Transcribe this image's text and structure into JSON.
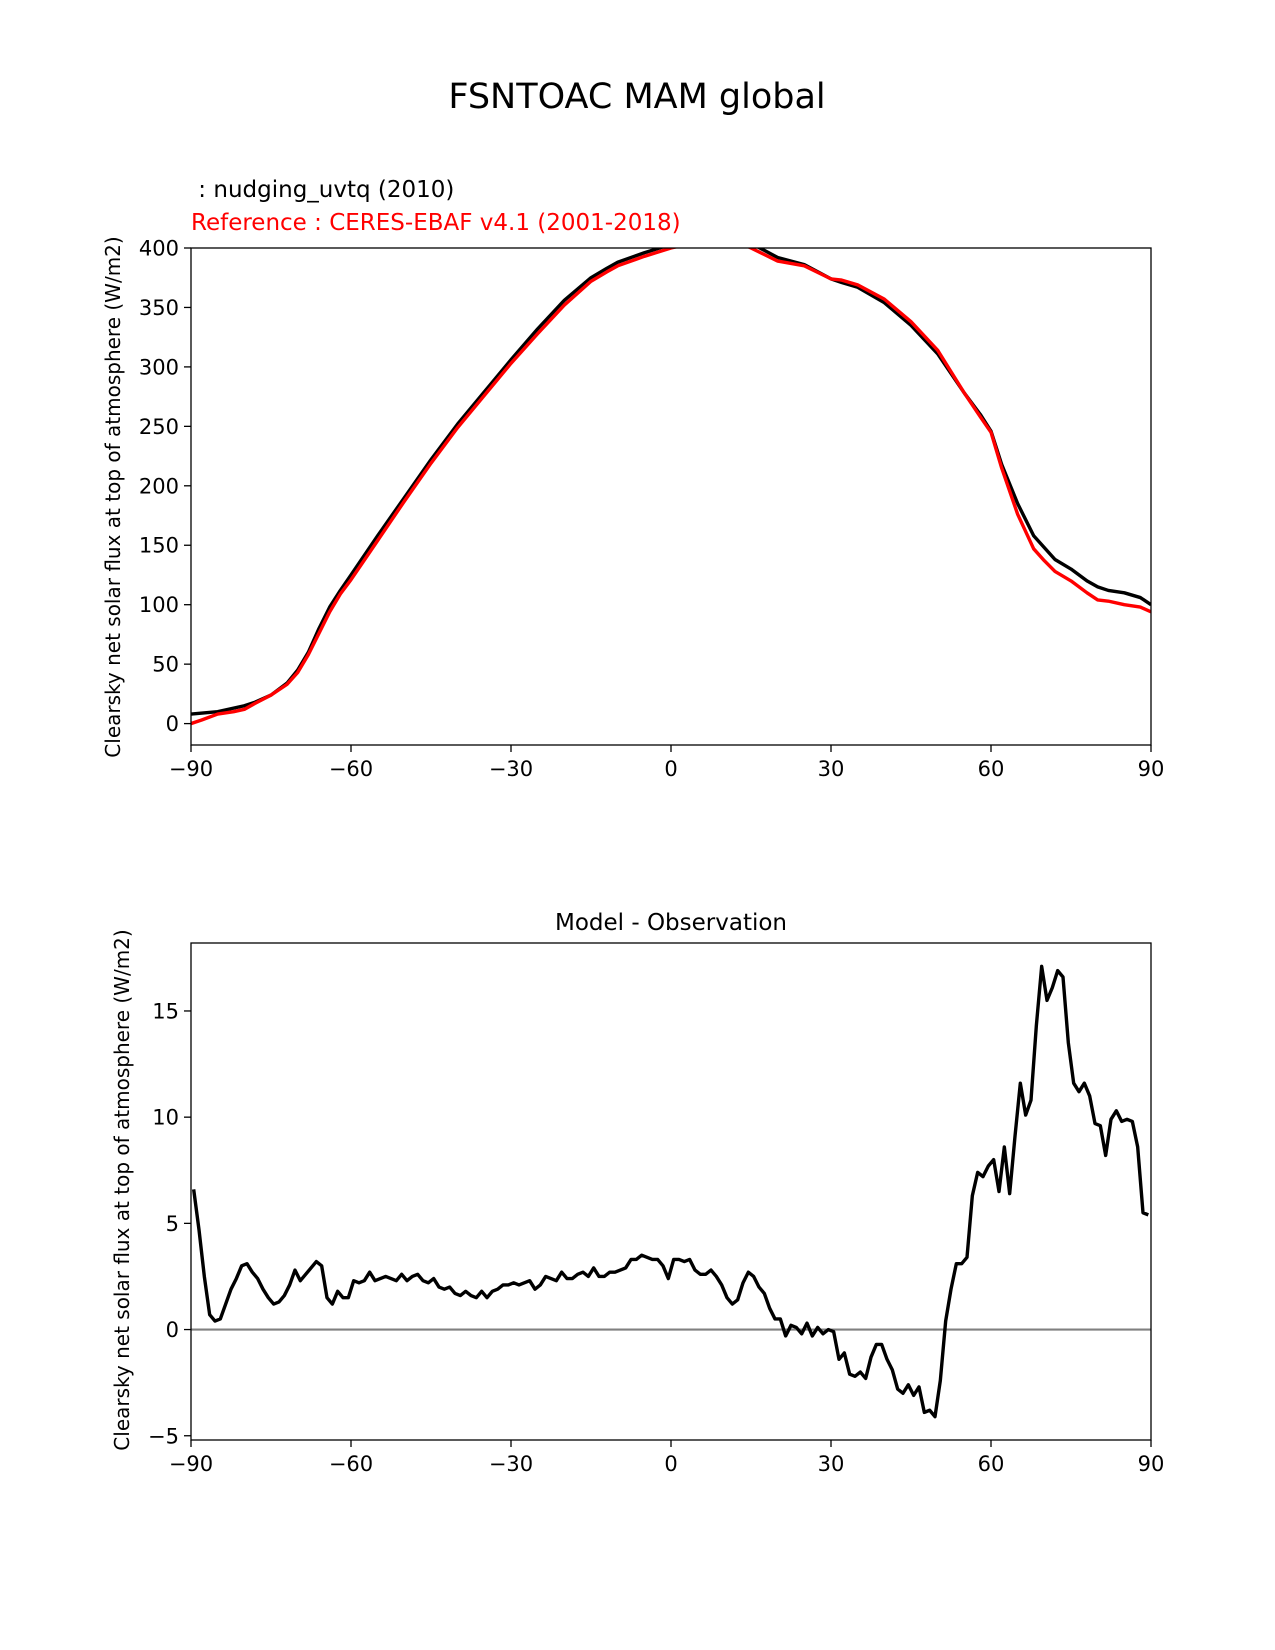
{
  "figure": {
    "title": "FSNTOAC MAM global"
  },
  "chart_data": [
    {
      "type": "line",
      "legend": {
        "test_label": " : nudging_uvtq (2010)",
        "ref_label": "Reference : CERES-EBAF v4.1 (2001-2018)"
      },
      "xlabel": "",
      "ylabel": "Clearsky net solar flux at top of atmosphere (W/m2)",
      "xlim": [
        -90,
        90
      ],
      "ylim": [
        -18,
        400
      ],
      "xticks": [
        -90,
        -60,
        -30,
        0,
        30,
        60,
        90
      ],
      "xtick_labels": [
        "−90",
        "−60",
        "−30",
        "0",
        "30",
        "60",
        "90"
      ],
      "yticks": [
        0,
        50,
        100,
        150,
        200,
        250,
        300,
        350,
        400
      ],
      "ytick_labels": [
        "0",
        "50",
        "100",
        "150",
        "200",
        "250",
        "300",
        "350",
        "400"
      ],
      "series": [
        {
          "color": "#000000",
          "x": [
            -90,
            -85,
            -80,
            -78,
            -75,
            -72,
            -70,
            -68,
            -66,
            -64,
            -62,
            -60,
            -55,
            -50,
            -45,
            -40,
            -35,
            -30,
            -25,
            -20,
            -15,
            -12,
            -10,
            -5,
            0,
            5,
            10,
            12,
            15,
            20,
            25,
            30,
            32,
            35,
            40,
            45,
            50,
            55,
            58,
            60,
            62,
            65,
            68,
            70,
            72,
            75,
            78,
            80,
            82,
            85,
            88,
            90
          ],
          "y": [
            8,
            10,
            15,
            18,
            24,
            34,
            45,
            60,
            80,
            98,
            112,
            125,
            158,
            190,
            222,
            252,
            279,
            306,
            332,
            356,
            375,
            383,
            388,
            396,
            403,
            408,
            408,
            408,
            404,
            392,
            386,
            374,
            371,
            367,
            354,
            335,
            311,
            278,
            260,
            246,
            218,
            185,
            158,
            148,
            138,
            130,
            120,
            115,
            112,
            110,
            106,
            100
          ]
        },
        {
          "color": "#ff0000",
          "x": [
            -90,
            -88,
            -85,
            -82,
            -80,
            -78,
            -75,
            -72,
            -70,
            -68,
            -66,
            -64,
            -62,
            -60,
            -55,
            -50,
            -45,
            -40,
            -35,
            -30,
            -25,
            -20,
            -15,
            -12,
            -10,
            -5,
            0,
            5,
            10,
            12,
            15,
            20,
            25,
            30,
            32,
            35,
            40,
            45,
            50,
            55,
            58,
            60,
            62,
            65,
            68,
            70,
            72,
            75,
            78,
            80,
            82,
            85,
            88,
            90
          ],
          "y": [
            0,
            3,
            8,
            10,
            12,
            17,
            24,
            33,
            43,
            58,
            76,
            94,
            109,
            121,
            154,
            187,
            219,
            249,
            276,
            303,
            328,
            352,
            372,
            380,
            385,
            393,
            400,
            405,
            404,
            406,
            400,
            389,
            385,
            374,
            373,
            369,
            357,
            338,
            314,
            278,
            258,
            245,
            215,
            176,
            147,
            137,
            128,
            120,
            110,
            104,
            103,
            100,
            98,
            94
          ]
        }
      ]
    },
    {
      "type": "line",
      "title": "Model - Observation",
      "xlabel": "",
      "ylabel": "Clearsky net solar flux at top of atmosphere (W/m2)",
      "xlim": [
        -90,
        90
      ],
      "ylim": [
        -5.2,
        18.2
      ],
      "zero_line": {
        "y": 0,
        "color": "#808080"
      },
      "xticks": [
        -90,
        -60,
        -30,
        0,
        30,
        60,
        90
      ],
      "xtick_labels": [
        "−90",
        "−60",
        "−30",
        "0",
        "30",
        "60",
        "90"
      ],
      "yticks": [
        -5,
        0,
        5,
        10,
        15
      ],
      "ytick_labels": [
        "−5",
        "0",
        "5",
        "10",
        "15"
      ],
      "series": [
        {
          "color": "#000000",
          "x": [
            -89.5,
            -88.5,
            -87.5,
            -86.5,
            -85.5,
            -84.5,
            -83.5,
            -82.5,
            -81.5,
            -80.5,
            -79.5,
            -78.5,
            -77.5,
            -76.5,
            -75.5,
            -74.5,
            -73.5,
            -72.5,
            -71.5,
            -70.5,
            -69.5,
            -68.5,
            -67.5,
            -66.5,
            -65.5,
            -64.5,
            -63.5,
            -62.5,
            -61.5,
            -60.5,
            -59.5,
            -58.5,
            -57.5,
            -56.5,
            -55.5,
            -54.5,
            -53.5,
            -52.5,
            -51.5,
            -50.5,
            -49.5,
            -48.5,
            -47.5,
            -46.5,
            -45.5,
            -44.5,
            -43.5,
            -42.5,
            -41.5,
            -40.5,
            -39.5,
            -38.5,
            -37.5,
            -36.5,
            -35.5,
            -34.5,
            -33.5,
            -32.5,
            -31.5,
            -30.5,
            -29.5,
            -28.5,
            -27.5,
            -26.5,
            -25.5,
            -24.5,
            -23.5,
            -22.5,
            -21.5,
            -20.5,
            -19.5,
            -18.5,
            -17.5,
            -16.5,
            -15.5,
            -14.5,
            -13.5,
            -12.5,
            -11.5,
            -10.5,
            -9.5,
            -8.5,
            -7.5,
            -6.5,
            -5.5,
            -4.5,
            -3.5,
            -2.5,
            -1.5,
            -0.5,
            0.5,
            1.5,
            2.5,
            3.5,
            4.5,
            5.5,
            6.5,
            7.5,
            8.5,
            9.5,
            10.5,
            11.5,
            12.5,
            13.5,
            14.5,
            15.5,
            16.5,
            17.5,
            18.5,
            19.5,
            20.5,
            21.5,
            22.5,
            23.5,
            24.5,
            25.5,
            26.5,
            27.5,
            28.5,
            29.5,
            30.5,
            31.5,
            32.5,
            33.5,
            34.5,
            35.5,
            36.5,
            37.5,
            38.5,
            39.5,
            40.5,
            41.5,
            42.5,
            43.5,
            44.5,
            45.5,
            46.5,
            47.5,
            48.5,
            49.5,
            50.5,
            51.5,
            52.5,
            53.5,
            54.5,
            55.5,
            56.5,
            57.5,
            58.5,
            59.5,
            60.5,
            61.5,
            62.5,
            63.5,
            64.5,
            65.5,
            66.5,
            67.5,
            68.5,
            69.5,
            70.5,
            71.5,
            72.5,
            73.5,
            74.5,
            75.5,
            76.5,
            77.5,
            78.5,
            79.5,
            80.5,
            81.5,
            82.5,
            83.5,
            84.5,
            85.5,
            86.5,
            87.5,
            88.5,
            89.5
          ],
          "y": [
            6.6,
            4.7,
            2.5,
            0.7,
            0.4,
            0.5,
            1.2,
            1.9,
            2.4,
            3.0,
            3.1,
            2.7,
            2.4,
            1.9,
            1.5,
            1.2,
            1.3,
            1.6,
            2.1,
            2.8,
            2.3,
            2.6,
            2.9,
            3.2,
            3.0,
            1.5,
            1.2,
            1.8,
            1.5,
            1.5,
            2.3,
            2.2,
            2.3,
            2.7,
            2.3,
            2.4,
            2.5,
            2.4,
            2.3,
            2.6,
            2.3,
            2.5,
            2.6,
            2.3,
            2.2,
            2.4,
            2.0,
            1.9,
            2.0,
            1.7,
            1.6,
            1.8,
            1.6,
            1.5,
            1.8,
            1.5,
            1.8,
            1.9,
            2.1,
            2.1,
            2.2,
            2.1,
            2.2,
            2.3,
            1.9,
            2.1,
            2.5,
            2.4,
            2.3,
            2.7,
            2.4,
            2.4,
            2.6,
            2.7,
            2.5,
            2.9,
            2.5,
            2.5,
            2.7,
            2.7,
            2.8,
            2.9,
            3.3,
            3.3,
            3.5,
            3.4,
            3.3,
            3.3,
            3.0,
            2.4,
            3.3,
            3.3,
            3.2,
            3.3,
            2.8,
            2.6,
            2.6,
            2.8,
            2.5,
            2.1,
            1.5,
            1.2,
            1.4,
            2.2,
            2.7,
            2.5,
            2.0,
            1.7,
            1.0,
            0.5,
            0.5,
            -0.3,
            0.2,
            0.1,
            -0.2,
            0.3,
            -0.3,
            0.1,
            -0.2,
            0.0,
            -0.1,
            -1.4,
            -1.1,
            -2.1,
            -2.2,
            -2.0,
            -2.3,
            -1.3,
            -0.7,
            -0.7,
            -1.4,
            -1.9,
            -2.8,
            -3.0,
            -2.6,
            -3.1,
            -2.7,
            -3.9,
            -3.8,
            -4.1,
            -2.4,
            0.4,
            1.9,
            3.1,
            3.1,
            3.4,
            6.3,
            7.4,
            7.2,
            7.7,
            8.0,
            6.5,
            8.6,
            6.4,
            9.1,
            11.6,
            10.1,
            10.8,
            14.3,
            17.1,
            15.5,
            16.1,
            16.9,
            16.6,
            13.5,
            11.6,
            11.2,
            11.6,
            11.0,
            9.7,
            9.6,
            8.2,
            9.9,
            10.3,
            9.8,
            9.9,
            9.8,
            8.6,
            5.5,
            5.4
          ]
        }
      ]
    }
  ]
}
